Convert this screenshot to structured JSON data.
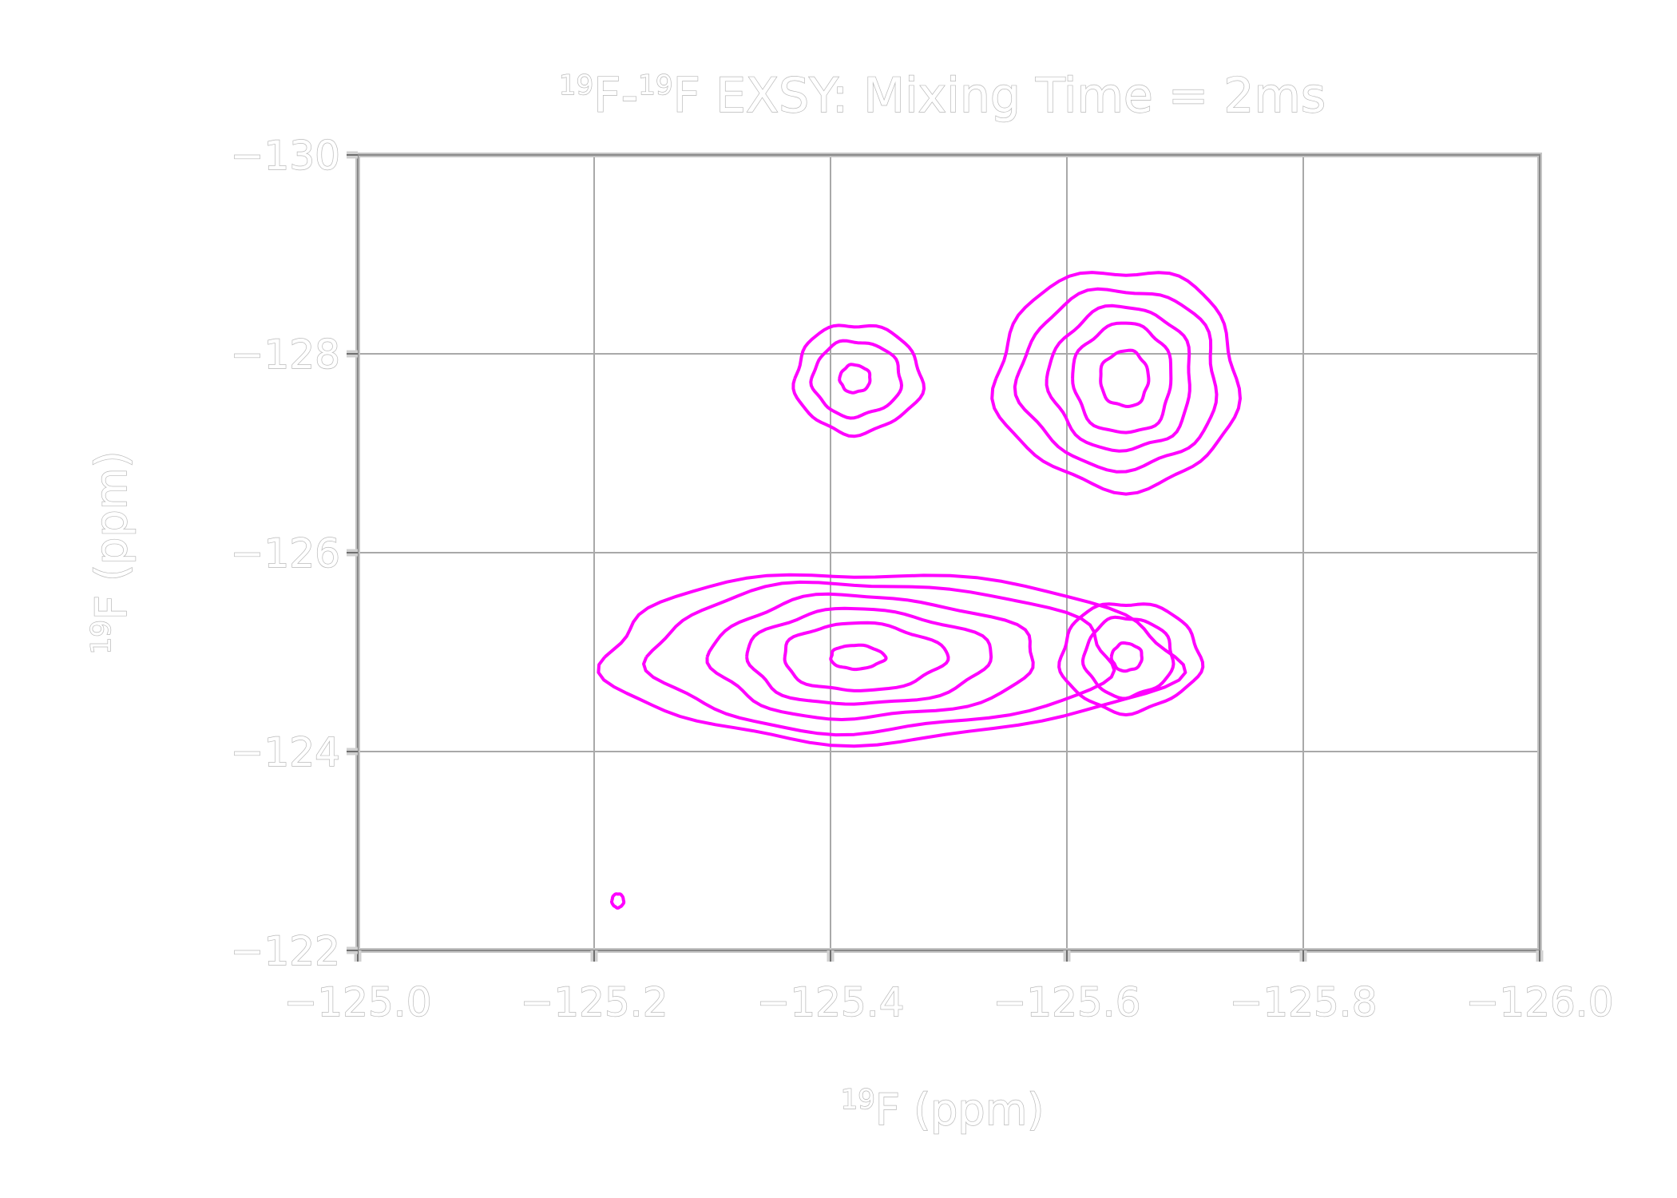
{
  "chart_data": {
    "type": "contour",
    "title_parts": {
      "sup1": "19",
      "base1": "F-",
      "sup2": "19",
      "base2": "F EXSY: Mixing Time = 2ms"
    },
    "xlabel_parts": {
      "sup": "19",
      "base": "F (ppm)"
    },
    "ylabel_parts": {
      "sup": "19",
      "base": "F (ppm)"
    },
    "xlim": [
      -125.0,
      -126.0
    ],
    "ylim": [
      -122,
      -130
    ],
    "x_ticks": [
      -125.0,
      -125.2,
      -125.4,
      -125.6,
      -125.8,
      -126.0
    ],
    "x_tick_labels": [
      "−125.0",
      "−125.2",
      "−125.4",
      "−125.6",
      "−125.8",
      "−126.0"
    ],
    "y_ticks": [
      -122,
      -124,
      -126,
      -128,
      -130
    ],
    "y_tick_labels": [
      "−122",
      "−124",
      "−126",
      "−128",
      "−130"
    ],
    "grid": true,
    "contour_color": "#ff00ff",
    "peaks": [
      {
        "name": "diagonal-peak-1",
        "x": -125.42,
        "y": -124.95,
        "rx": [
          0.21,
          0.17,
          0.12,
          0.09,
          0.06,
          0.02
        ],
        "ry": [
          0.85,
          0.75,
          0.62,
          0.48,
          0.34,
          0.12
        ],
        "skew": 0.3
      },
      {
        "name": "cross-peak-1",
        "x": -125.42,
        "y": -127.75,
        "rx": [
          0.05,
          0.035,
          0.012
        ],
        "ry": [
          0.55,
          0.38,
          0.14
        ],
        "skew": 0.15
      },
      {
        "name": "cross-peak-2",
        "x": -125.65,
        "y": -124.95,
        "rx": [
          0.055,
          0.035,
          0.012
        ],
        "ry": [
          0.55,
          0.4,
          0.14
        ],
        "skew": 0.15
      },
      {
        "name": "diagonal-peak-2",
        "x": -125.65,
        "y": -127.75,
        "rx": [
          0.11,
          0.09,
          0.065,
          0.045,
          0.022
        ],
        "ry": [
          1.1,
          0.9,
          0.72,
          0.55,
          0.28
        ],
        "skew": -0.15
      },
      {
        "name": "noise-blip",
        "x": -125.22,
        "y": -122.5,
        "rx": [
          0.005
        ],
        "ry": [
          0.07
        ],
        "skew": 0.0
      }
    ]
  }
}
